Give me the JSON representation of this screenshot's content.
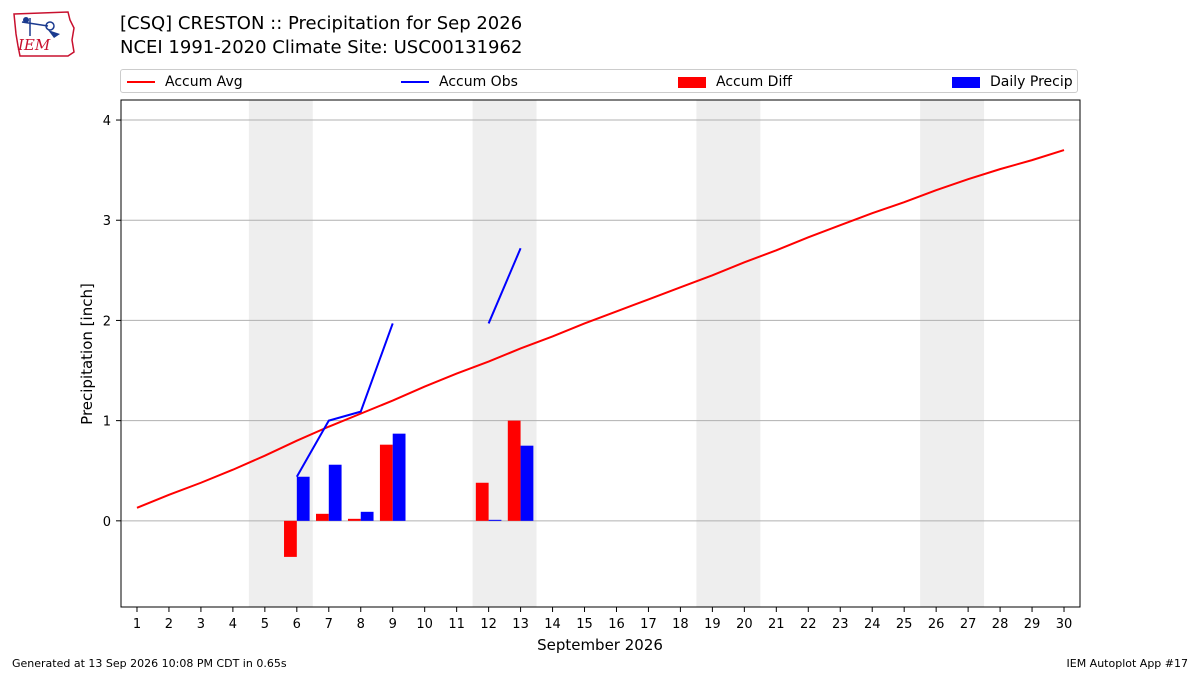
{
  "header": {
    "title_line1": "[CSQ] CRESTON :: Precipitation for Sep 2026",
    "title_line2": "NCEI 1991-2020 Climate Site: USC00131962",
    "logo_text": "IEM"
  },
  "footer": {
    "generated": "Generated at 13 Sep 2026 10:08 PM CDT in 0.65s",
    "app": "IEM Autoplot App #17"
  },
  "legend": [
    {
      "label": "Accum Avg",
      "kind": "line",
      "color": "#ff0000"
    },
    {
      "label": "Accum Obs",
      "kind": "line",
      "color": "#0000ff"
    },
    {
      "label": "Accum Diff",
      "kind": "bar",
      "color": "#ff0000"
    },
    {
      "label": "Daily Precip",
      "kind": "bar",
      "color": "#0000ff"
    }
  ],
  "chart_data": {
    "type": "bar",
    "xlabel": "September 2026",
    "ylabel": "Precipitation [inch]",
    "x": [
      1,
      2,
      3,
      4,
      5,
      6,
      7,
      8,
      9,
      10,
      11,
      12,
      13,
      14,
      15,
      16,
      17,
      18,
      19,
      20,
      21,
      22,
      23,
      24,
      25,
      26,
      27,
      28,
      29,
      30
    ],
    "xlim": [
      0.5,
      30.5
    ],
    "ylim": [
      -0.86,
      4.2
    ],
    "yticks": [
      0,
      1,
      2,
      3,
      4
    ],
    "grid": "horizontal",
    "weekend_shading": [
      [
        5,
        6
      ],
      [
        12,
        13
      ],
      [
        19,
        20
      ],
      [
        26,
        27
      ]
    ],
    "shade_color": "#eeeeee",
    "series": [
      {
        "name": "Accum Avg",
        "kind": "line",
        "color": "#ff0000",
        "x": [
          1,
          2,
          3,
          4,
          5,
          6,
          7,
          8,
          9,
          10,
          11,
          12,
          13,
          14,
          15,
          16,
          17,
          18,
          19,
          20,
          21,
          22,
          23,
          24,
          25,
          26,
          27,
          28,
          29,
          30
        ],
        "values": [
          0.13,
          0.26,
          0.38,
          0.51,
          0.65,
          0.8,
          0.94,
          1.07,
          1.2,
          1.34,
          1.47,
          1.59,
          1.72,
          1.84,
          1.97,
          2.09,
          2.21,
          2.33,
          2.45,
          2.58,
          2.7,
          2.83,
          2.95,
          3.07,
          3.18,
          3.3,
          3.41,
          3.51,
          3.6,
          3.7
        ]
      },
      {
        "name": "Accum Obs",
        "kind": "line",
        "color": "#0000ff",
        "segments": [
          {
            "x": [
              6,
              7,
              8,
              9
            ],
            "values": [
              0.44,
              1.0,
              1.09,
              1.97
            ]
          },
          {
            "x": [
              12,
              13
            ],
            "values": [
              1.97,
              2.72
            ]
          }
        ]
      },
      {
        "name": "Accum Diff",
        "kind": "bar",
        "color": "#ff0000",
        "x": [
          6,
          7,
          8,
          9,
          12,
          13
        ],
        "values": [
          -0.36,
          0.07,
          0.02,
          0.76,
          0.38,
          1.0
        ]
      },
      {
        "name": "Daily Precip",
        "kind": "bar",
        "color": "#0000ff",
        "x": [
          6,
          7,
          8,
          9,
          12,
          13
        ],
        "values": [
          0.44,
          0.56,
          0.09,
          0.87,
          0.01,
          0.75
        ]
      }
    ]
  }
}
